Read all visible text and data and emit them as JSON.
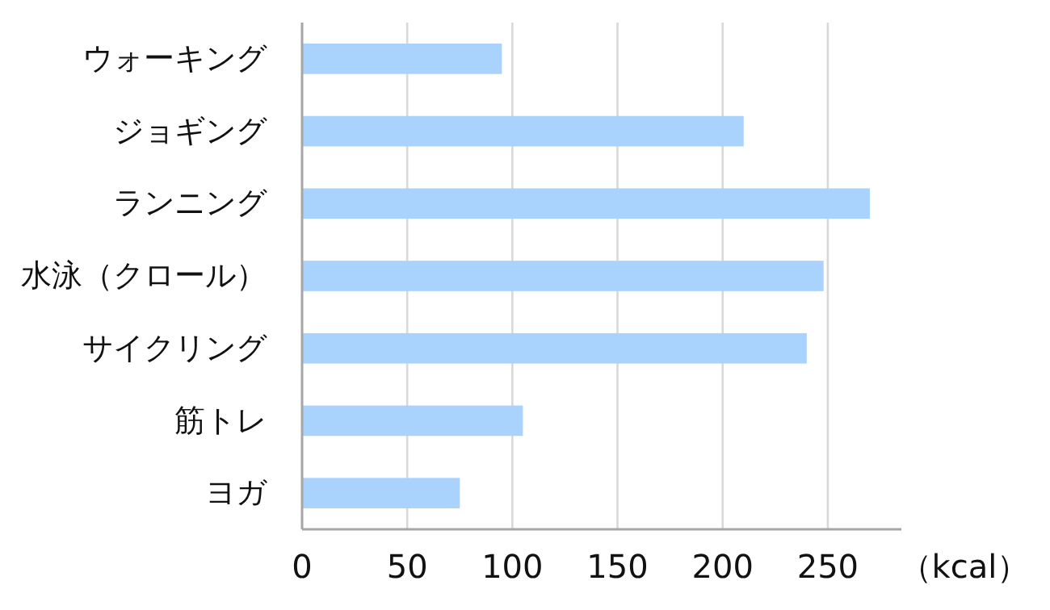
{
  "chart_data": {
    "type": "bar",
    "orientation": "horizontal",
    "categories": [
      "ウォーキング",
      "ジョギング",
      "ランニング",
      "水泳（クロール）",
      "サイクリング",
      "筋トレ",
      "ヨガ"
    ],
    "values": [
      95,
      210,
      270,
      248,
      240,
      105,
      75
    ],
    "color": "#a9d2fc",
    "xlabel": "（kcal）",
    "xlim": [
      0,
      285
    ],
    "xticks": [
      0,
      50,
      100,
      150,
      200,
      250
    ],
    "grid": "x"
  }
}
